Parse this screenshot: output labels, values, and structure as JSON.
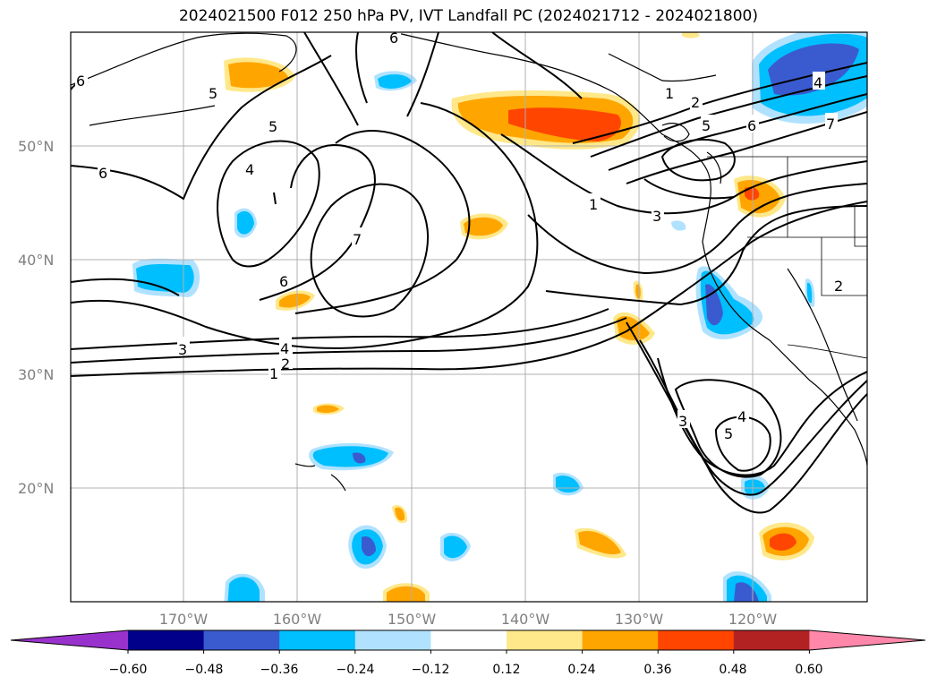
{
  "title": "2024021500 F012 250 hPa PV, IVT Landfall PC (2024021712 - 2024021800)",
  "map": {
    "lat_labels": [
      "50°N",
      "40°N",
      "30°N",
      "20°N"
    ],
    "lon_labels": [
      "170°W",
      "160°W",
      "150°W",
      "140°W",
      "130°W",
      "120°W"
    ]
  },
  "colorbar": {
    "ticks": [
      "−0.60",
      "−0.48",
      "−0.36",
      "−0.24",
      "−0.12",
      "0.12",
      "0.24",
      "0.36",
      "0.48",
      "0.60"
    ],
    "colors": [
      "#9932cc",
      "#00008b",
      "#3a5bcf",
      "#00bfff",
      "#b0e2ff",
      "#ffffff",
      "#ffe88a",
      "#ffa500",
      "#ff4500",
      "#b22222",
      "#ff88aa"
    ]
  },
  "contour_labels": [
    "1",
    "2",
    "3",
    "4",
    "5",
    "6",
    "7",
    "4",
    "5",
    "6",
    "1",
    "2",
    "5",
    "6",
    "4",
    "7",
    "1",
    "3",
    "6",
    "2",
    "3",
    "4",
    "5",
    "6"
  ]
}
